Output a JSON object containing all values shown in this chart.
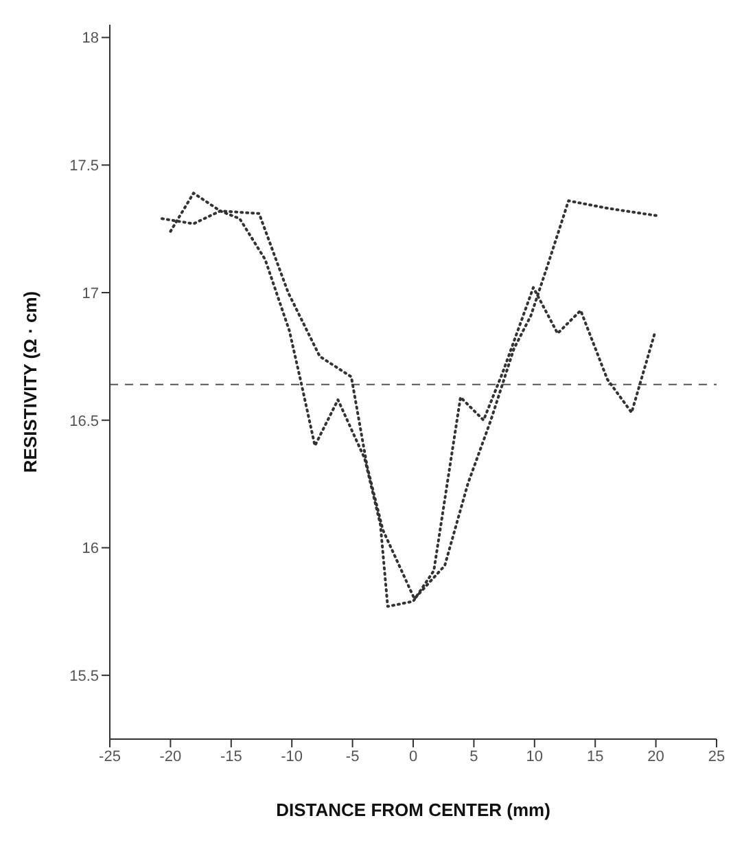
{
  "chart_data": {
    "type": "line",
    "xlabel": "DISTANCE FROM CENTER (mm)",
    "ylabel": "RESISTIVITY (Ω · cm)",
    "series": [
      {
        "color": "#333333",
        "x": [
          -20.7,
          -18.1,
          -15.9,
          -12.7,
          -10.3,
          -7.7,
          -5.1,
          -3.8,
          -2.5,
          0.1,
          2.6,
          4.5,
          6.4,
          8.3,
          9.7,
          11.1,
          12.8,
          16.1,
          20.3
        ],
        "values": [
          17.29,
          17.27,
          17.32,
          17.31,
          17.0,
          16.75,
          16.67,
          16.32,
          16.07,
          15.8,
          15.93,
          16.25,
          16.5,
          16.78,
          16.91,
          17.11,
          17.36,
          17.33,
          17.3
        ]
      },
      {
        "color": "#333333",
        "x": [
          -20.0,
          -18.1,
          -15.9,
          -14.3,
          -12.2,
          -10.2,
          -9.2,
          -8.1,
          -6.2,
          -4.0,
          -2.7,
          -2.1,
          0.0,
          1.7,
          3.9,
          5.8,
          7.4,
          9.9,
          11.9,
          13.8,
          16.0,
          18.0,
          19.9
        ],
        "values": [
          17.24,
          17.39,
          17.32,
          17.29,
          17.13,
          16.85,
          16.64,
          16.4,
          16.58,
          16.35,
          16.09,
          15.77,
          15.79,
          15.91,
          16.59,
          16.5,
          16.69,
          17.02,
          16.84,
          16.93,
          16.66,
          16.53,
          16.84
        ]
      }
    ],
    "xlim": [
      -25,
      25
    ],
    "xticks": [
      -25,
      -20,
      -15,
      -10,
      -5,
      0,
      5,
      10,
      15,
      20,
      25
    ],
    "ylim": [
      15.25,
      18.05
    ],
    "yticks": [
      15.5,
      16,
      16.5,
      17,
      17.5,
      18
    ],
    "ref_lines": [
      {
        "axis": "y",
        "value": 16.64,
        "line_style": "dashed",
        "color": "#555555"
      }
    ],
    "marker": "none",
    "line_style": "dotted"
  }
}
